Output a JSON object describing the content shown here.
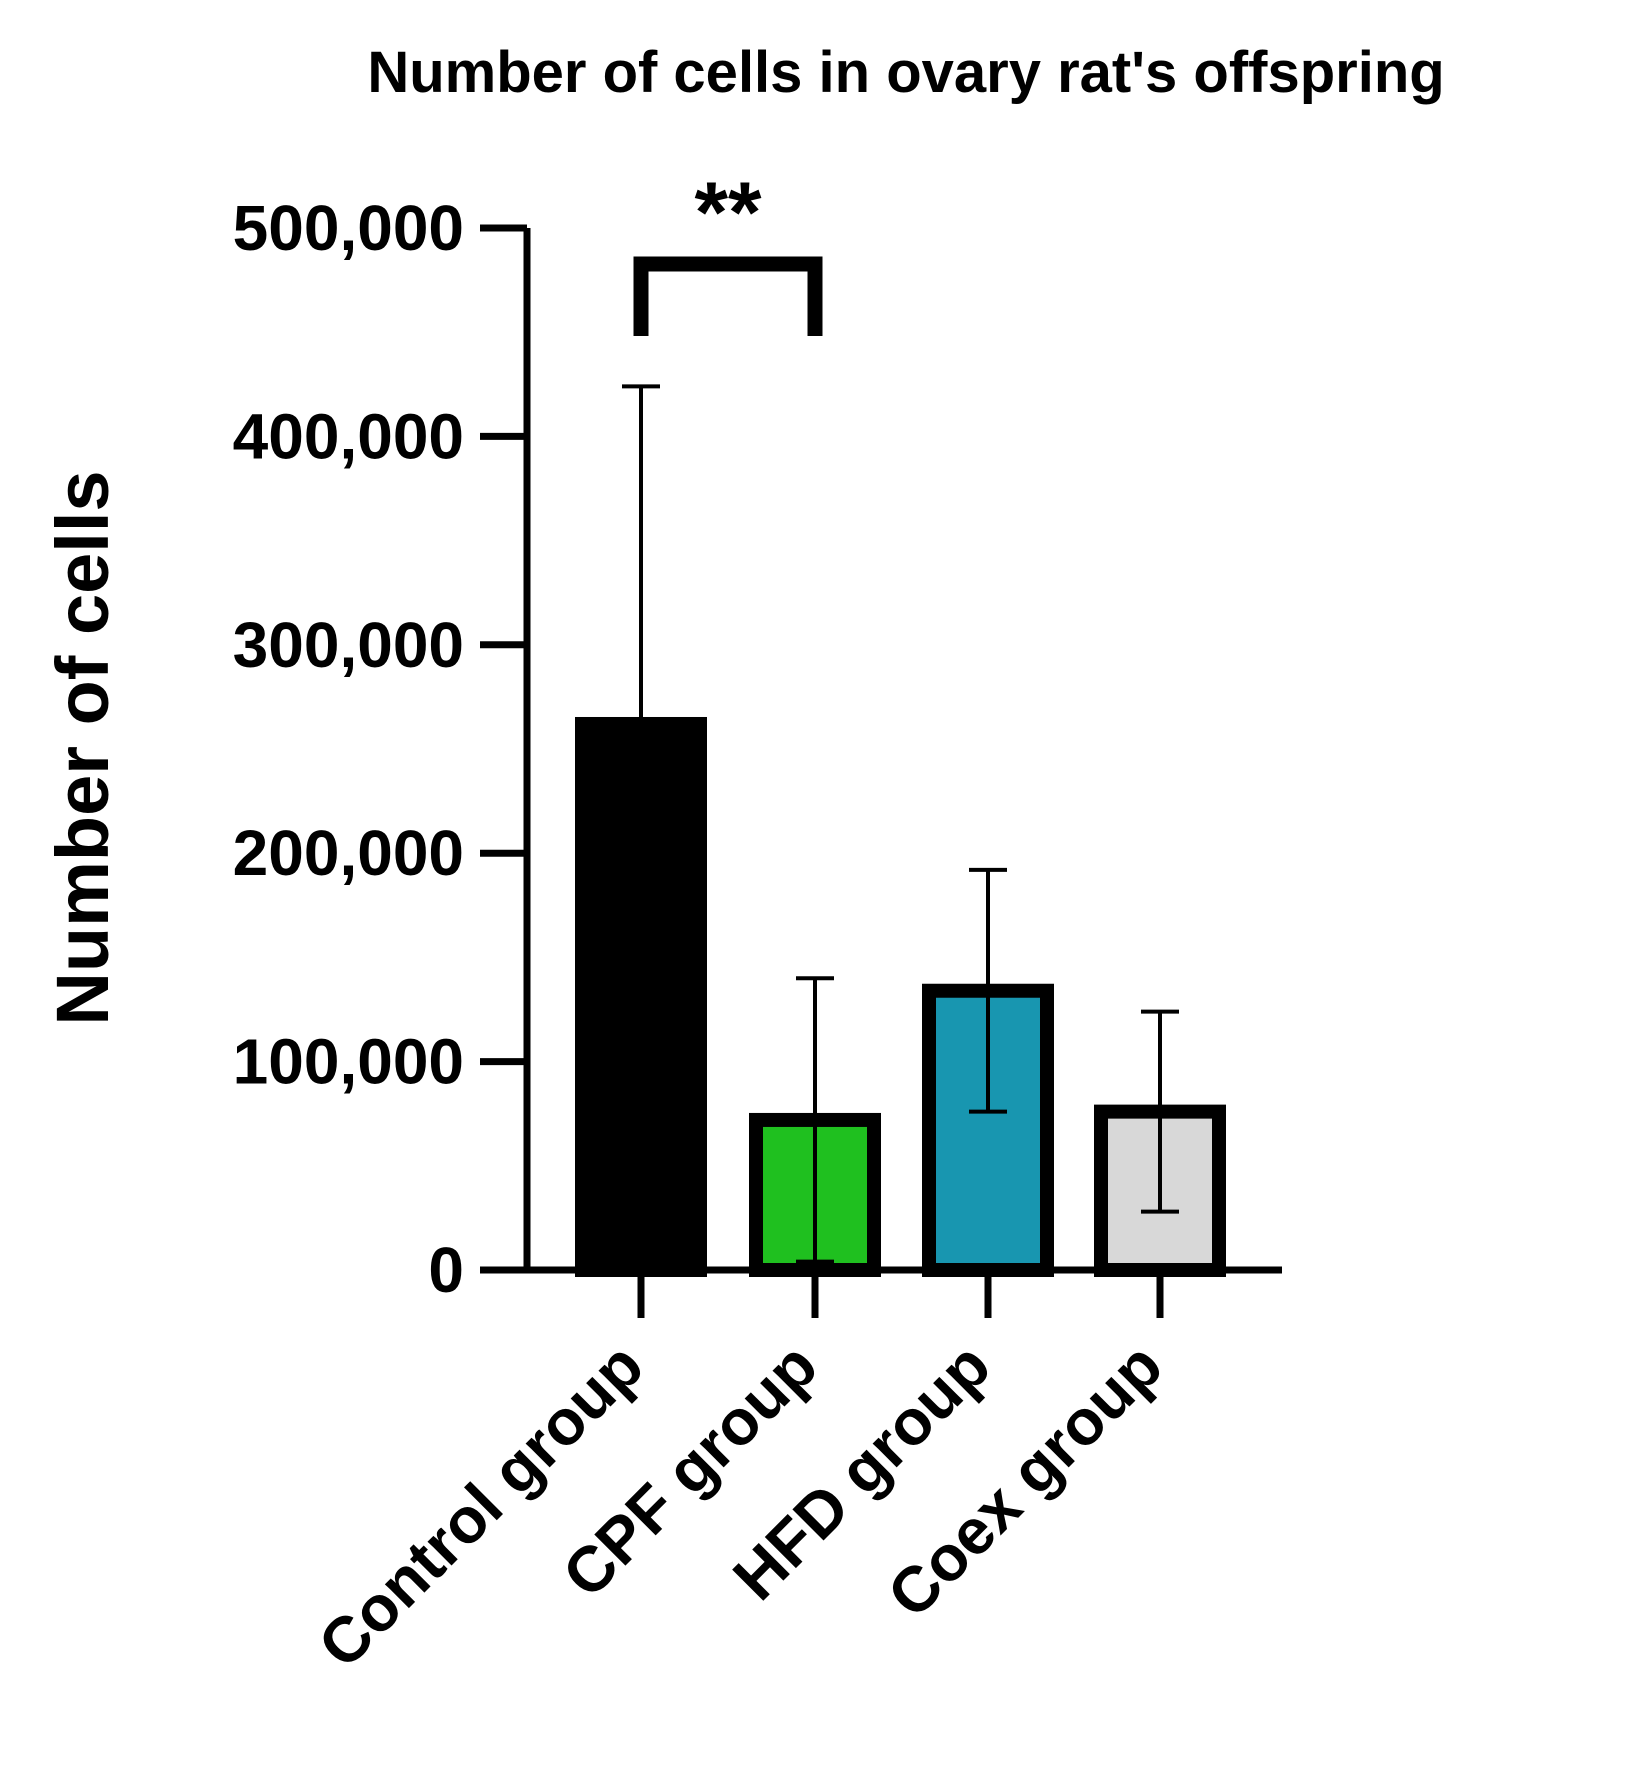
{
  "chart_data": {
    "type": "bar",
    "title": "Number of cells in ovary rat's offspring",
    "xlabel": "",
    "ylabel": "Number of cells",
    "ylim": [
      0,
      500000
    ],
    "yticks": [
      0,
      100000,
      200000,
      300000,
      400000,
      500000
    ],
    "ytick_labels": [
      "0",
      "100,000",
      "200,000",
      "300,000",
      "400,000",
      "500,000"
    ],
    "categories": [
      "Control group",
      "CPF group",
      "HFD group",
      "Coex group"
    ],
    "values": [
      262000,
      72000,
      134000,
      76000
    ],
    "error": [
      162000,
      68000,
      58000,
      48000
    ],
    "colors": [
      "#000000",
      "#1fc01f",
      "#1896b0",
      "#d8d8d8"
    ],
    "significance": {
      "from": "Control group",
      "to": "CPF group",
      "label": "**"
    },
    "grid": false
  }
}
